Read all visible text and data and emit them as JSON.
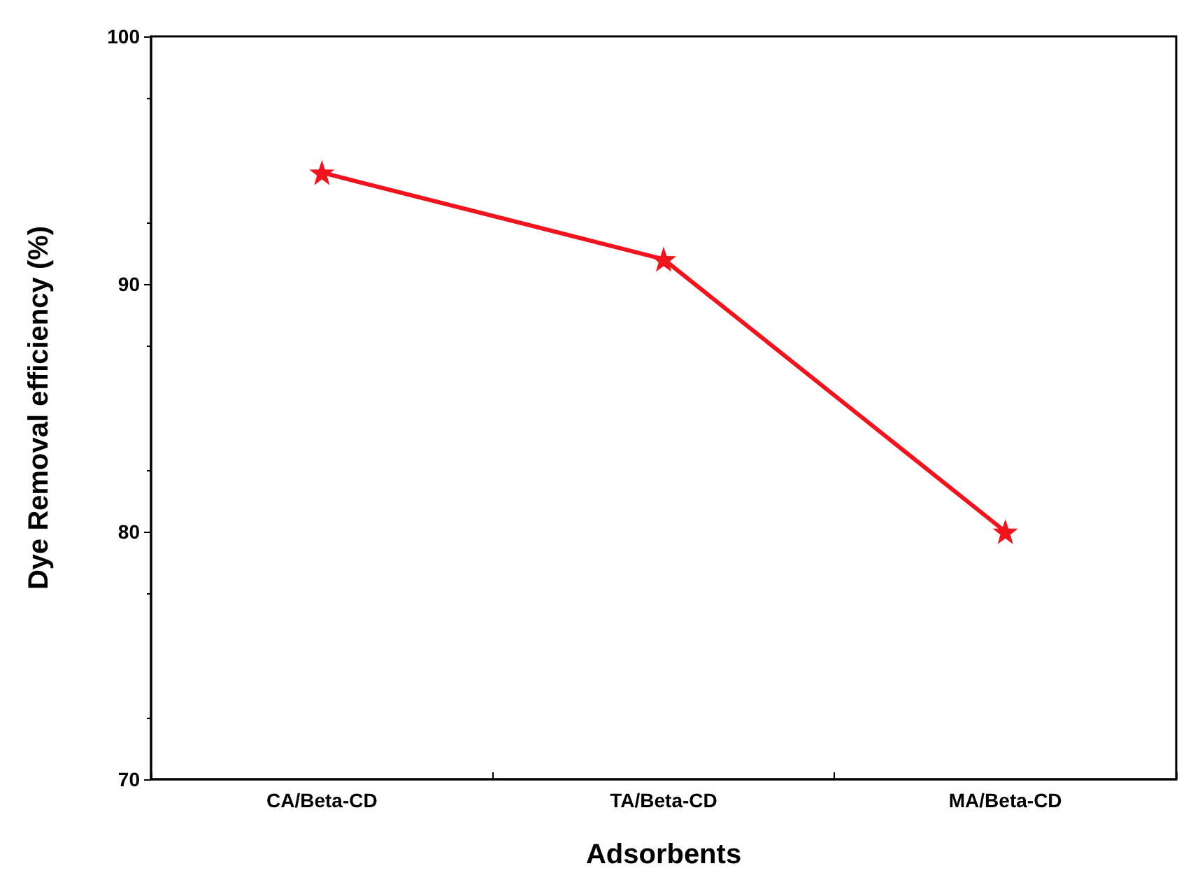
{
  "chart_data": {
    "type": "line",
    "xlabel": "Adsorbents",
    "ylabel": "Dye Removal efficiency (%)",
    "categories": [
      "CA/Beta-CD",
      "TA/Beta-CD",
      "MA/Beta-CD"
    ],
    "series": [
      {
        "color": "#f0141e",
        "values": [
          94.5,
          91,
          80
        ]
      }
    ],
    "ylim": [
      70,
      100
    ],
    "yticks": [
      70,
      80,
      90,
      100
    ],
    "grid": false,
    "legend": false,
    "marker": "star",
    "line_style": "solid"
  }
}
